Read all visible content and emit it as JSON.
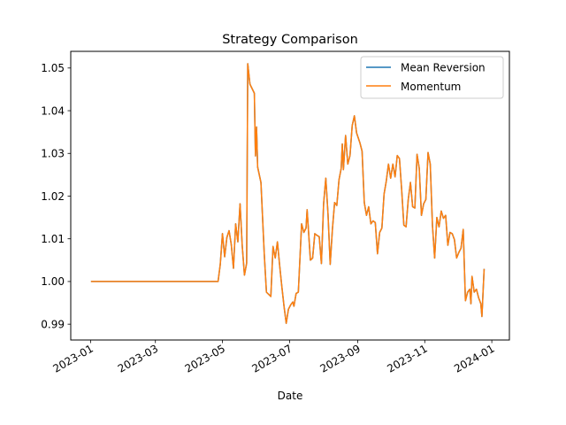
{
  "chart_data": {
    "type": "line",
    "title": "Strategy Comparison",
    "xlabel": "Date",
    "ylabel": "",
    "xlim": [
      "2022-12-14",
      "2024-01-17"
    ],
    "ylim": [
      0.9863,
      1.0539
    ],
    "x_ticks": [
      "2023-01",
      "2023-03",
      "2023-05",
      "2023-07",
      "2023-09",
      "2023-11",
      "2024-01"
    ],
    "y_ticks": [
      "0.99",
      "1.00",
      "1.01",
      "1.02",
      "1.03",
      "1.04",
      "1.05"
    ],
    "legend": {
      "position": "top-right"
    },
    "grid": false,
    "series": [
      {
        "name": "Mean Reversion",
        "color": "#1f77b4",
        "points": [
          [
            "2023-01-02",
            1.0
          ],
          [
            "2023-04-27",
            1.0
          ],
          [
            "2023-04-29",
            1.004
          ],
          [
            "2023-05-01",
            1.0112
          ],
          [
            "2023-05-03",
            1.0058
          ],
          [
            "2023-05-05",
            1.0103
          ],
          [
            "2023-05-07",
            1.0119
          ],
          [
            "2023-05-09",
            1.0087
          ],
          [
            "2023-05-11",
            1.0031
          ],
          [
            "2023-05-13",
            1.0135
          ],
          [
            "2023-05-15",
            1.0093
          ],
          [
            "2023-05-17",
            1.0182
          ],
          [
            "2023-05-19",
            1.0083
          ],
          [
            "2023-05-21",
            1.0015
          ],
          [
            "2023-05-23",
            1.0043
          ],
          [
            "2023-05-24",
            1.051
          ],
          [
            "2023-05-26",
            1.0462
          ],
          [
            "2023-05-30",
            1.0441
          ],
          [
            "2023-05-31",
            1.0294
          ],
          [
            "2023-06-01",
            1.0362
          ],
          [
            "2023-06-02",
            1.0268
          ],
          [
            "2023-06-05",
            1.0232
          ],
          [
            "2023-06-08",
            1.0065
          ],
          [
            "2023-06-10",
            0.9975
          ],
          [
            "2023-06-14",
            0.9965
          ],
          [
            "2023-06-16",
            1.0082
          ],
          [
            "2023-06-18",
            1.0055
          ],
          [
            "2023-06-20",
            1.0093
          ],
          [
            "2023-06-22",
            1.0038
          ],
          [
            "2023-06-24",
            0.9988
          ],
          [
            "2023-06-26",
            0.9942
          ],
          [
            "2023-06-28",
            0.9902
          ],
          [
            "2023-06-30",
            0.9935
          ],
          [
            "2023-07-02",
            0.9945
          ],
          [
            "2023-07-04",
            0.9952
          ],
          [
            "2023-07-05",
            0.9942
          ],
          [
            "2023-07-07",
            0.9972
          ],
          [
            "2023-07-09",
            0.9975
          ],
          [
            "2023-07-12",
            1.0135
          ],
          [
            "2023-07-14",
            1.0115
          ],
          [
            "2023-07-16",
            1.0125
          ],
          [
            "2023-07-17",
            1.0168
          ],
          [
            "2023-07-20",
            1.005
          ],
          [
            "2023-07-22",
            1.0055
          ],
          [
            "2023-07-24",
            1.0112
          ],
          [
            "2023-07-26",
            1.0108
          ],
          [
            "2023-07-28",
            1.0105
          ],
          [
            "2023-07-30",
            1.0042
          ],
          [
            "2023-08-01",
            1.0182
          ],
          [
            "2023-08-03",
            1.0242
          ],
          [
            "2023-08-05",
            1.0158
          ],
          [
            "2023-08-07",
            1.004
          ],
          [
            "2023-08-09",
            1.0122
          ],
          [
            "2023-08-11",
            1.0185
          ],
          [
            "2023-08-13",
            1.0178
          ],
          [
            "2023-08-15",
            1.0238
          ],
          [
            "2023-08-17",
            1.0265
          ],
          [
            "2023-08-18",
            1.0322
          ],
          [
            "2023-08-19",
            1.0262
          ],
          [
            "2023-08-21",
            1.0342
          ],
          [
            "2023-08-23",
            1.0275
          ],
          [
            "2023-08-25",
            1.0295
          ],
          [
            "2023-08-27",
            1.0365
          ],
          [
            "2023-08-29",
            1.0388
          ],
          [
            "2023-08-31",
            1.0348
          ],
          [
            "2023-09-03",
            1.0325
          ],
          [
            "2023-09-05",
            1.0305
          ],
          [
            "2023-09-07",
            1.0185
          ],
          [
            "2023-09-09",
            1.0155
          ],
          [
            "2023-09-11",
            1.0175
          ],
          [
            "2023-09-13",
            1.0135
          ],
          [
            "2023-09-15",
            1.0142
          ],
          [
            "2023-09-17",
            1.0138
          ],
          [
            "2023-09-19",
            1.0065
          ],
          [
            "2023-09-21",
            1.0115
          ],
          [
            "2023-09-23",
            1.0125
          ],
          [
            "2023-09-25",
            1.0205
          ],
          [
            "2023-09-27",
            1.0235
          ],
          [
            "2023-09-29",
            1.0275
          ],
          [
            "2023-10-01",
            1.0242
          ],
          [
            "2023-10-03",
            1.0275
          ],
          [
            "2023-10-05",
            1.0245
          ],
          [
            "2023-10-07",
            1.0295
          ],
          [
            "2023-10-09",
            1.0288
          ],
          [
            "2023-10-11",
            1.0215
          ],
          [
            "2023-10-13",
            1.0132
          ],
          [
            "2023-10-15",
            1.0128
          ],
          [
            "2023-10-17",
            1.0192
          ],
          [
            "2023-10-19",
            1.0232
          ],
          [
            "2023-10-21",
            1.0175
          ],
          [
            "2023-10-23",
            1.0172
          ],
          [
            "2023-10-25",
            1.0298
          ],
          [
            "2023-10-27",
            1.0265
          ],
          [
            "2023-10-29",
            1.0155
          ],
          [
            "2023-10-31",
            1.0182
          ],
          [
            "2023-11-02",
            1.0192
          ],
          [
            "2023-11-04",
            1.0302
          ],
          [
            "2023-11-06",
            1.0275
          ],
          [
            "2023-11-08",
            1.0132
          ],
          [
            "2023-11-10",
            1.0055
          ],
          [
            "2023-11-12",
            1.015
          ],
          [
            "2023-11-14",
            1.0128
          ],
          [
            "2023-11-16",
            1.0165
          ],
          [
            "2023-11-18",
            1.0148
          ],
          [
            "2023-11-20",
            1.0155
          ],
          [
            "2023-11-22",
            1.0085
          ],
          [
            "2023-11-24",
            1.0115
          ],
          [
            "2023-11-26",
            1.0112
          ],
          [
            "2023-11-28",
            1.0098
          ],
          [
            "2023-11-30",
            1.0055
          ],
          [
            "2023-12-02",
            1.0068
          ],
          [
            "2023-12-04",
            1.0078
          ],
          [
            "2023-12-06",
            1.0122
          ],
          [
            "2023-12-08",
            0.9955
          ],
          [
            "2023-12-10",
            0.9975
          ],
          [
            "2023-12-12",
            0.9982
          ],
          [
            "2023-12-13",
            0.9948
          ],
          [
            "2023-12-14",
            1.0012
          ],
          [
            "2023-12-16",
            0.9975
          ],
          [
            "2023-12-18",
            0.9982
          ],
          [
            "2023-12-20",
            0.9962
          ],
          [
            "2023-12-22",
            0.9948
          ],
          [
            "2023-12-23",
            0.9918
          ],
          [
            "2023-12-25",
            1.0028
          ]
        ]
      },
      {
        "name": "Momentum",
        "color": "#ff7f0e",
        "points": [
          [
            "2023-01-02",
            1.0
          ],
          [
            "2023-04-27",
            1.0
          ],
          [
            "2023-04-29",
            1.004
          ],
          [
            "2023-05-01",
            1.0112
          ],
          [
            "2023-05-03",
            1.0058
          ],
          [
            "2023-05-05",
            1.0103
          ],
          [
            "2023-05-07",
            1.0119
          ],
          [
            "2023-05-09",
            1.0087
          ],
          [
            "2023-05-11",
            1.0031
          ],
          [
            "2023-05-13",
            1.0135
          ],
          [
            "2023-05-15",
            1.0093
          ],
          [
            "2023-05-17",
            1.0182
          ],
          [
            "2023-05-19",
            1.0083
          ],
          [
            "2023-05-21",
            1.0015
          ],
          [
            "2023-05-23",
            1.0043
          ],
          [
            "2023-05-24",
            1.051
          ],
          [
            "2023-05-26",
            1.0462
          ],
          [
            "2023-05-30",
            1.0441
          ],
          [
            "2023-05-31",
            1.0294
          ],
          [
            "2023-06-01",
            1.0362
          ],
          [
            "2023-06-02",
            1.0268
          ],
          [
            "2023-06-05",
            1.0232
          ],
          [
            "2023-06-08",
            1.0065
          ],
          [
            "2023-06-10",
            0.9975
          ],
          [
            "2023-06-14",
            0.9965
          ],
          [
            "2023-06-16",
            1.0082
          ],
          [
            "2023-06-18",
            1.0055
          ],
          [
            "2023-06-20",
            1.0093
          ],
          [
            "2023-06-22",
            1.0038
          ],
          [
            "2023-06-24",
            0.9988
          ],
          [
            "2023-06-26",
            0.9942
          ],
          [
            "2023-06-28",
            0.9902
          ],
          [
            "2023-06-30",
            0.9935
          ],
          [
            "2023-07-02",
            0.9945
          ],
          [
            "2023-07-04",
            0.9952
          ],
          [
            "2023-07-05",
            0.9942
          ],
          [
            "2023-07-07",
            0.9972
          ],
          [
            "2023-07-09",
            0.9975
          ],
          [
            "2023-07-12",
            1.0135
          ],
          [
            "2023-07-14",
            1.0115
          ],
          [
            "2023-07-16",
            1.0125
          ],
          [
            "2023-07-17",
            1.0168
          ],
          [
            "2023-07-20",
            1.005
          ],
          [
            "2023-07-22",
            1.0055
          ],
          [
            "2023-07-24",
            1.0112
          ],
          [
            "2023-07-26",
            1.0108
          ],
          [
            "2023-07-28",
            1.0105
          ],
          [
            "2023-07-30",
            1.0042
          ],
          [
            "2023-08-01",
            1.0182
          ],
          [
            "2023-08-03",
            1.0242
          ],
          [
            "2023-08-05",
            1.0158
          ],
          [
            "2023-08-07",
            1.004
          ],
          [
            "2023-08-09",
            1.0122
          ],
          [
            "2023-08-11",
            1.0185
          ],
          [
            "2023-08-13",
            1.0178
          ],
          [
            "2023-08-15",
            1.0238
          ],
          [
            "2023-08-17",
            1.0265
          ],
          [
            "2023-08-18",
            1.0322
          ],
          [
            "2023-08-19",
            1.0262
          ],
          [
            "2023-08-21",
            1.0342
          ],
          [
            "2023-08-23",
            1.0275
          ],
          [
            "2023-08-25",
            1.0295
          ],
          [
            "2023-08-27",
            1.0365
          ],
          [
            "2023-08-29",
            1.0388
          ],
          [
            "2023-08-31",
            1.0348
          ],
          [
            "2023-09-03",
            1.0325
          ],
          [
            "2023-09-05",
            1.0305
          ],
          [
            "2023-09-07",
            1.0185
          ],
          [
            "2023-09-09",
            1.0155
          ],
          [
            "2023-09-11",
            1.0175
          ],
          [
            "2023-09-13",
            1.0135
          ],
          [
            "2023-09-15",
            1.0142
          ],
          [
            "2023-09-17",
            1.0138
          ],
          [
            "2023-09-19",
            1.0065
          ],
          [
            "2023-09-21",
            1.0115
          ],
          [
            "2023-09-23",
            1.0125
          ],
          [
            "2023-09-25",
            1.0205
          ],
          [
            "2023-09-27",
            1.0235
          ],
          [
            "2023-09-29",
            1.0275
          ],
          [
            "2023-10-01",
            1.0242
          ],
          [
            "2023-10-03",
            1.0275
          ],
          [
            "2023-10-05",
            1.0245
          ],
          [
            "2023-10-07",
            1.0295
          ],
          [
            "2023-10-09",
            1.0288
          ],
          [
            "2023-10-11",
            1.0215
          ],
          [
            "2023-10-13",
            1.0132
          ],
          [
            "2023-10-15",
            1.0128
          ],
          [
            "2023-10-17",
            1.0192
          ],
          [
            "2023-10-19",
            1.0232
          ],
          [
            "2023-10-21",
            1.0175
          ],
          [
            "2023-10-23",
            1.0172
          ],
          [
            "2023-10-25",
            1.0298
          ],
          [
            "2023-10-27",
            1.0265
          ],
          [
            "2023-10-29",
            1.0155
          ],
          [
            "2023-10-31",
            1.0182
          ],
          [
            "2023-11-02",
            1.0192
          ],
          [
            "2023-11-04",
            1.0302
          ],
          [
            "2023-11-06",
            1.0275
          ],
          [
            "2023-11-08",
            1.0132
          ],
          [
            "2023-11-10",
            1.0055
          ],
          [
            "2023-11-12",
            1.015
          ],
          [
            "2023-11-14",
            1.0128
          ],
          [
            "2023-11-16",
            1.0165
          ],
          [
            "2023-11-18",
            1.0148
          ],
          [
            "2023-11-20",
            1.0155
          ],
          [
            "2023-11-22",
            1.0085
          ],
          [
            "2023-11-24",
            1.0115
          ],
          [
            "2023-11-26",
            1.0112
          ],
          [
            "2023-11-28",
            1.0098
          ],
          [
            "2023-11-30",
            1.0055
          ],
          [
            "2023-12-02",
            1.0068
          ],
          [
            "2023-12-04",
            1.0078
          ],
          [
            "2023-12-06",
            1.0122
          ],
          [
            "2023-12-08",
            0.9955
          ],
          [
            "2023-12-10",
            0.9975
          ],
          [
            "2023-12-12",
            0.9982
          ],
          [
            "2023-12-13",
            0.9948
          ],
          [
            "2023-12-14",
            1.0012
          ],
          [
            "2023-12-16",
            0.9975
          ],
          [
            "2023-12-18",
            0.9982
          ],
          [
            "2023-12-20",
            0.9962
          ],
          [
            "2023-12-22",
            0.9948
          ],
          [
            "2023-12-23",
            0.9918
          ],
          [
            "2023-12-25",
            1.0028
          ]
        ]
      }
    ]
  }
}
